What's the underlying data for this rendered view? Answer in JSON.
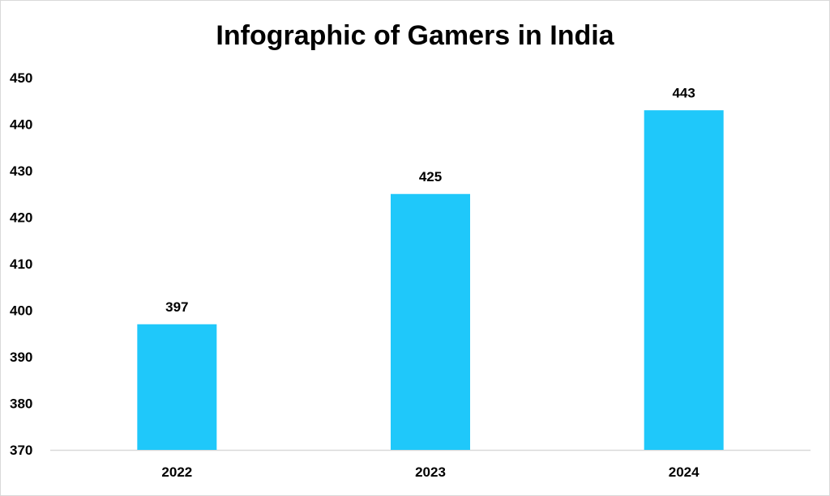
{
  "chart_data": {
    "type": "bar",
    "title": "Infographic of Gamers in India",
    "categories": [
      "2022",
      "2023",
      "2024"
    ],
    "values": [
      397,
      425,
      443
    ],
    "data_labels": [
      "397",
      "425",
      "443"
    ],
    "xlabel": "",
    "ylabel": "",
    "ylim": [
      370,
      450
    ],
    "yticks": [
      370,
      380,
      390,
      400,
      410,
      420,
      430,
      440,
      450
    ],
    "ytick_labels": [
      "370",
      "380",
      "390",
      "400",
      "410",
      "420",
      "430",
      "440",
      "450"
    ],
    "grid": false,
    "legend": "none",
    "colors": {
      "bar": "#1FC8FA",
      "axis": "#d9d9d9",
      "text": "#000000"
    }
  }
}
